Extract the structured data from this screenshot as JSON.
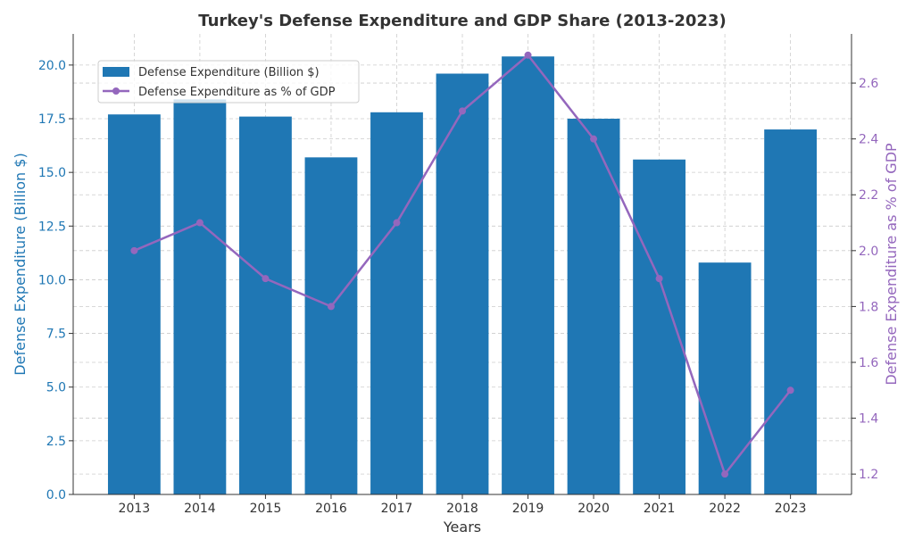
{
  "chart_data": {
    "type": "bar+line",
    "title": "Turkey's Defense Expenditure and GDP Share (2013-2023)",
    "xlabel": "Years",
    "ylabel_left": "Defense Expenditure (Billion $)",
    "ylabel_right": "Defense Expenditure as % of GDP",
    "categories": [
      "2013",
      "2014",
      "2015",
      "2016",
      "2017",
      "2018",
      "2019",
      "2020",
      "2021",
      "2022",
      "2023"
    ],
    "series": [
      {
        "name": "Defense Expenditure (Billion $)",
        "type": "bar",
        "axis": "left",
        "color": "#1f77b4",
        "values": [
          17.7,
          18.4,
          17.6,
          15.7,
          17.8,
          19.6,
          20.4,
          17.5,
          15.6,
          10.8,
          17.0
        ]
      },
      {
        "name": "Defense Expenditure as % of GDP",
        "type": "line",
        "axis": "right",
        "color": "#9467bd",
        "values": [
          2.0,
          2.1,
          1.9,
          1.8,
          2.1,
          2.5,
          2.7,
          2.4,
          1.9,
          1.2,
          1.5
        ]
      }
    ],
    "ylim_left": [
      0,
      21.45
    ],
    "ylim_right": [
      1.127,
      2.776
    ],
    "yticks_left": [
      "0.0",
      "2.5",
      "5.0",
      "7.5",
      "10.0",
      "12.5",
      "15.0",
      "17.5",
      "20.0"
    ],
    "yticks_right": [
      "1.2",
      "1.4",
      "1.6",
      "1.8",
      "2.0",
      "2.2",
      "2.4",
      "2.6"
    ],
    "grid": true,
    "legend_position": "upper-left"
  }
}
